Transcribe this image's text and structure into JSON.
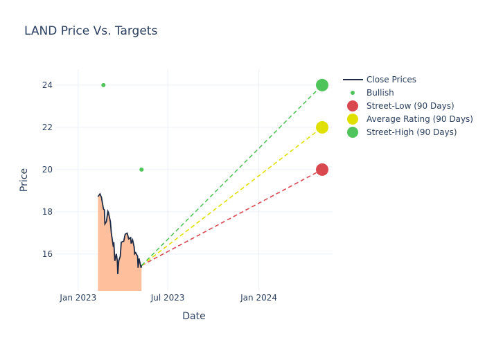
{
  "chart_data": {
    "type": "line",
    "title": "LAND Price Vs. Targets",
    "xlabel": "Date",
    "ylabel": "Price",
    "xlim": [
      "2022-11-16",
      "2024-05-29"
    ],
    "ylim": [
      14.26,
      24.75
    ],
    "grid": true,
    "legend_position": "top-right",
    "x_ticks": [
      {
        "date": "2023-01-01",
        "label": "Jan 2023"
      },
      {
        "date": "2023-07-01",
        "label": "Jul 2023"
      },
      {
        "date": "2024-01-01",
        "label": "Jan 2024"
      }
    ],
    "y_ticks": [
      16,
      18,
      20,
      22,
      24
    ],
    "close_prices": {
      "name": "Close Prices",
      "color": "#1f2a44",
      "fill": "#fdbf9c",
      "x": [
        "2023-02-10",
        "2023-02-14",
        "2023-02-17",
        "2023-02-21",
        "2023-02-23",
        "2023-02-24",
        "2023-02-27",
        "2023-03-02",
        "2023-03-03",
        "2023-03-07",
        "2023-03-09",
        "2023-03-13",
        "2023-03-14",
        "2023-03-16",
        "2023-03-19",
        "2023-03-21",
        "2023-03-22",
        "2023-03-24",
        "2023-03-27",
        "2023-03-29",
        "2023-04-03",
        "2023-04-06",
        "2023-04-10",
        "2023-04-13",
        "2023-04-17",
        "2023-04-18",
        "2023-04-21",
        "2023-04-24",
        "2023-04-25",
        "2023-04-27",
        "2023-05-01",
        "2023-05-02",
        "2023-05-04",
        "2023-05-05",
        "2023-05-08",
        "2023-05-09"
      ],
      "y": [
        18.72,
        18.85,
        18.69,
        18.14,
        18.09,
        17.43,
        17.54,
        18.03,
        17.98,
        17.54,
        16.99,
        16.34,
        16.56,
        15.68,
        16.01,
        15.68,
        15.05,
        15.68,
        15.9,
        16.56,
        16.61,
        16.94,
        16.99,
        16.72,
        16.78,
        16.5,
        16.67,
        16.34,
        16.01,
        16.07,
        15.9,
        15.35,
        15.79,
        15.68,
        15.35,
        15.46
      ]
    },
    "bullish": {
      "name": "Bullish",
      "color": "#4fc45a",
      "x": [
        "2023-02-21",
        "2023-05-09"
      ],
      "y": [
        24,
        20
      ]
    },
    "targets": [
      {
        "name": "Street-Low (90 Days)",
        "color": "#d9474f",
        "from": [
          "2023-05-09",
          15.46
        ],
        "to": [
          "2024-05-08",
          20
        ]
      },
      {
        "name": "Average Rating (90 Days)",
        "color": "#e0e000",
        "from": [
          "2023-05-09",
          15.46
        ],
        "to": [
          "2024-05-08",
          22
        ]
      },
      {
        "name": "Street-High (90 Days)",
        "color": "#4fc45a",
        "from": [
          "2023-05-09",
          15.46
        ],
        "to": [
          "2024-05-08",
          24
        ]
      }
    ]
  }
}
